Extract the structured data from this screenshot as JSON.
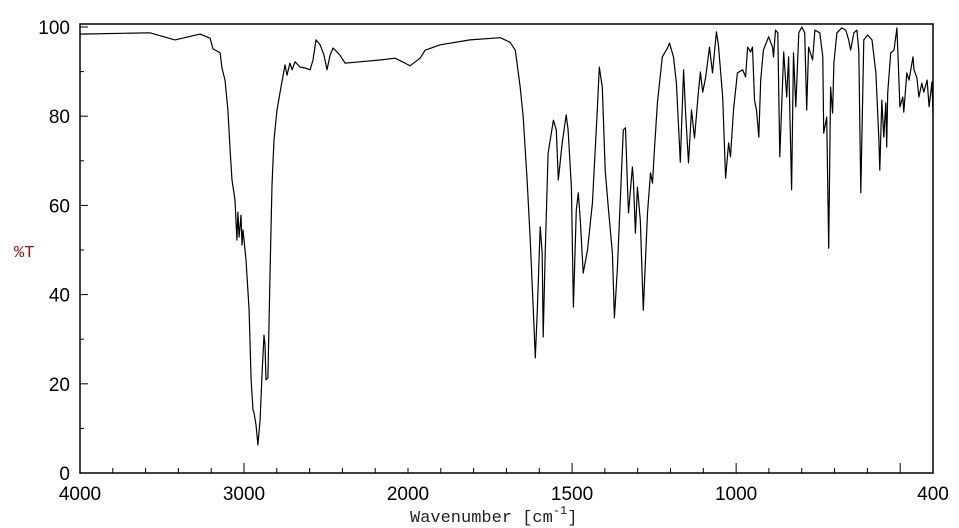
{
  "chart_data": {
    "type": "line",
    "title": "",
    "xlabel": "Wavenumber [cm-1]",
    "xlabel_main": "Wavenumber [cm",
    "xlabel_sup": "-1",
    "xlabel_close": "]",
    "ylabel": "%T",
    "xlim": [
      4000,
      400
    ],
    "x_scale_break": 2000,
    "ylim": [
      0,
      100
    ],
    "x_ticks": [
      4000,
      3000,
      2000,
      1500,
      1000,
      400
    ],
    "x_tick_labels": [
      "4000",
      "3000",
      "2000",
      "1500",
      "1000",
      "400"
    ],
    "y_ticks": [
      0,
      20,
      40,
      60,
      80,
      100
    ],
    "y_tick_labels": [
      "0",
      "20",
      "40",
      "60",
      "80",
      "100"
    ],
    "grid": false,
    "colors": {
      "line": "#000000",
      "ylabel": "#8b1a1a",
      "xlabel": "#222222"
    },
    "series": [
      {
        "name": "spectrum",
        "points": [
          [
            4000,
            98.4
          ],
          [
            3573,
            98.7
          ],
          [
            3421,
            97.1
          ],
          [
            3268,
            98.4
          ],
          [
            3207,
            97.5
          ],
          [
            3189,
            95.1
          ],
          [
            3146,
            94.2
          ],
          [
            3134,
            90.8
          ],
          [
            3116,
            88.1
          ],
          [
            3098,
            81.4
          ],
          [
            3085,
            72.4
          ],
          [
            3073,
            65.7
          ],
          [
            3055,
            61.2
          ],
          [
            3043,
            52.2
          ],
          [
            3037,
            58.5
          ],
          [
            3030,
            52.9
          ],
          [
            3018,
            57.8
          ],
          [
            3012,
            51.1
          ],
          [
            3006,
            54.5
          ],
          [
            2988,
            47.8
          ],
          [
            2969,
            36.5
          ],
          [
            2957,
            20.9
          ],
          [
            2945,
            14.1
          ],
          [
            2939,
            13.5
          ],
          [
            2927,
            10.8
          ],
          [
            2915,
            6.3
          ],
          [
            2902,
            11.9
          ],
          [
            2890,
            22.0
          ],
          [
            2878,
            30.9
          ],
          [
            2872,
            28.7
          ],
          [
            2866,
            20.9
          ],
          [
            2854,
            21.3
          ],
          [
            2841,
            45.5
          ],
          [
            2829,
            64.6
          ],
          [
            2817,
            74.7
          ],
          [
            2799,
            81.4
          ],
          [
            2780,
            85.4
          ],
          [
            2750,
            91.5
          ],
          [
            2738,
            89.2
          ],
          [
            2720,
            91.9
          ],
          [
            2707,
            90.4
          ],
          [
            2689,
            92.2
          ],
          [
            2658,
            91.0
          ],
          [
            2628,
            90.8
          ],
          [
            2597,
            90.4
          ],
          [
            2579,
            92.6
          ],
          [
            2561,
            97.1
          ],
          [
            2536,
            96.0
          ],
          [
            2512,
            93.7
          ],
          [
            2494,
            90.4
          ],
          [
            2475,
            93.7
          ],
          [
            2457,
            95.3
          ],
          [
            2415,
            93.7
          ],
          [
            2384,
            91.9
          ],
          [
            2293,
            92.2
          ],
          [
            2171,
            92.6
          ],
          [
            2079,
            93.0
          ],
          [
            2018,
            91.9
          ],
          [
            1994,
            91.3
          ],
          [
            1963,
            93.0
          ],
          [
            1948,
            94.8
          ],
          [
            1902,
            96.0
          ],
          [
            1811,
            97.1
          ],
          [
            1719,
            97.6
          ],
          [
            1689,
            96.6
          ],
          [
            1673,
            94.8
          ],
          [
            1658,
            86.5
          ],
          [
            1649,
            79.8
          ],
          [
            1637,
            65.7
          ],
          [
            1628,
            52.9
          ],
          [
            1618,
            36.5
          ],
          [
            1612,
            25.8
          ],
          [
            1606,
            36.5
          ],
          [
            1597,
            55.2
          ],
          [
            1591,
            49.3
          ],
          [
            1588,
            30.5
          ],
          [
            1582,
            49.3
          ],
          [
            1573,
            71.7
          ],
          [
            1557,
            79.1
          ],
          [
            1548,
            76.9
          ],
          [
            1542,
            65.7
          ],
          [
            1530,
            74.0
          ],
          [
            1518,
            80.3
          ],
          [
            1512,
            76.9
          ],
          [
            1502,
            64.1
          ],
          [
            1496,
            37.2
          ],
          [
            1487,
            59.0
          ],
          [
            1481,
            62.8
          ],
          [
            1475,
            56.7
          ],
          [
            1466,
            44.8
          ],
          [
            1453,
            50.0
          ],
          [
            1438,
            60.5
          ],
          [
            1423,
            81.4
          ],
          [
            1417,
            91.0
          ],
          [
            1408,
            86.5
          ],
          [
            1399,
            67.9
          ],
          [
            1389,
            59.0
          ],
          [
            1377,
            49.3
          ],
          [
            1371,
            34.8
          ],
          [
            1362,
            45.5
          ],
          [
            1344,
            76.9
          ],
          [
            1337,
            77.4
          ],
          [
            1331,
            64.1
          ],
          [
            1328,
            58.3
          ],
          [
            1316,
            68.6
          ],
          [
            1313,
            65.7
          ],
          [
            1307,
            53.8
          ],
          [
            1301,
            64.1
          ],
          [
            1292,
            56.7
          ],
          [
            1283,
            36.5
          ],
          [
            1270,
            58.3
          ],
          [
            1261,
            67.3
          ],
          [
            1255,
            65.0
          ],
          [
            1249,
            72.4
          ],
          [
            1240,
            83.0
          ],
          [
            1225,
            93.3
          ],
          [
            1209,
            95.3
          ],
          [
            1203,
            96.4
          ],
          [
            1191,
            93.3
          ],
          [
            1182,
            87.4
          ],
          [
            1170,
            69.7
          ],
          [
            1160,
            90.4
          ],
          [
            1154,
            80.7
          ],
          [
            1145,
            69.5
          ],
          [
            1136,
            81.4
          ],
          [
            1127,
            75.1
          ],
          [
            1115,
            85.4
          ],
          [
            1109,
            89.9
          ],
          [
            1102,
            85.4
          ],
          [
            1093,
            88.6
          ],
          [
            1081,
            95.5
          ],
          [
            1072,
            89.7
          ],
          [
            1060,
            98.9
          ],
          [
            1054,
            96.0
          ],
          [
            1041,
            84.3
          ],
          [
            1032,
            66.1
          ],
          [
            1023,
            74.0
          ],
          [
            1017,
            70.9
          ],
          [
            1008,
            81.4
          ],
          [
            996,
            89.7
          ],
          [
            980,
            90.4
          ],
          [
            971,
            88.8
          ],
          [
            965,
            95.5
          ],
          [
            956,
            94.4
          ],
          [
            950,
            95.5
          ],
          [
            944,
            83.6
          ],
          [
            938,
            81.4
          ],
          [
            931,
            75.3
          ],
          [
            925,
            88.1
          ],
          [
            917,
            94.8
          ],
          [
            901,
            97.8
          ],
          [
            889,
            95.5
          ],
          [
            886,
            93.3
          ],
          [
            880,
            99.3
          ],
          [
            873,
            98.7
          ],
          [
            867,
            70.9
          ],
          [
            855,
            94.4
          ],
          [
            846,
            84.3
          ],
          [
            840,
            93.3
          ],
          [
            831,
            63.5
          ],
          [
            825,
            94.2
          ],
          [
            818,
            82.1
          ],
          [
            809,
            98.7
          ],
          [
            800,
            100
          ],
          [
            791,
            98.7
          ],
          [
            785,
            81.4
          ],
          [
            779,
            95.5
          ],
          [
            767,
            92.6
          ],
          [
            760,
            99.3
          ],
          [
            745,
            98.7
          ],
          [
            736,
            93.3
          ],
          [
            733,
            76.2
          ],
          [
            724,
            79.8
          ],
          [
            718,
            50.4
          ],
          [
            712,
            86.5
          ],
          [
            706,
            80.7
          ],
          [
            702,
            91.9
          ],
          [
            693,
            98.7
          ],
          [
            678,
            99.8
          ],
          [
            666,
            99.3
          ],
          [
            657,
            97.1
          ],
          [
            651,
            94.8
          ],
          [
            641,
            98.7
          ],
          [
            632,
            99.3
          ],
          [
            626,
            94.8
          ],
          [
            620,
            62.8
          ],
          [
            611,
            97.1
          ],
          [
            599,
            98.2
          ],
          [
            586,
            97.1
          ],
          [
            574,
            89.7
          ],
          [
            565,
            74.7
          ],
          [
            562,
            67.9
          ],
          [
            556,
            83.6
          ],
          [
            550,
            75.3
          ],
          [
            544,
            83.0
          ],
          [
            541,
            73.1
          ],
          [
            538,
            85.2
          ],
          [
            529,
            94.2
          ],
          [
            519,
            94.8
          ],
          [
            510,
            99.8
          ],
          [
            507,
            94.2
          ],
          [
            501,
            82.1
          ],
          [
            492,
            84.3
          ],
          [
            489,
            80.9
          ],
          [
            480,
            89.7
          ],
          [
            473,
            88.1
          ],
          [
            461,
            93.3
          ],
          [
            458,
            90.4
          ],
          [
            449,
            88.6
          ],
          [
            443,
            84.3
          ],
          [
            434,
            87.4
          ],
          [
            428,
            85.4
          ],
          [
            418,
            88.1
          ],
          [
            412,
            82.1
          ],
          [
            403,
            87.7
          ],
          [
            400,
            80.7
          ]
        ]
      }
    ]
  }
}
